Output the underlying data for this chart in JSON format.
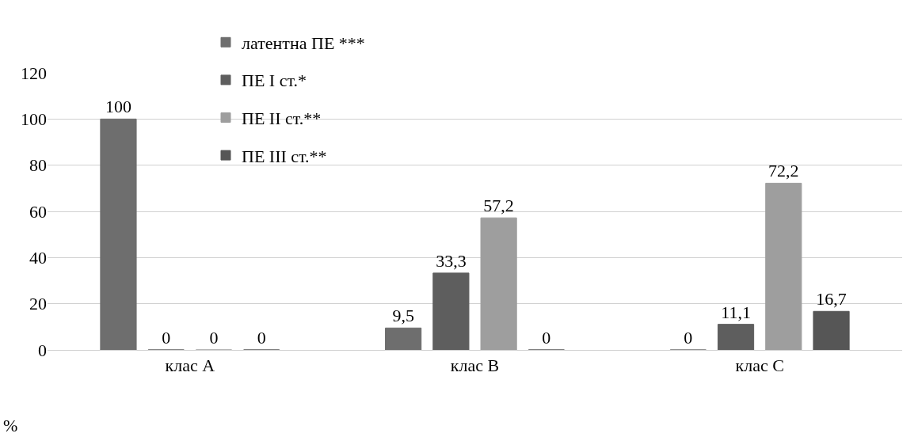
{
  "chart_data": {
    "type": "bar",
    "ylabel": "%",
    "categories": [
      "клас А",
      "клас В",
      "клас С"
    ],
    "series": [
      {
        "name": "латентна ПЕ ***",
        "color": "#6e6e6e",
        "values": [
          100,
          9.5,
          0
        ],
        "value_labels": [
          "100",
          "9,5",
          "0"
        ]
      },
      {
        "name": "ПЕ I ст.*",
        "color": "#5e5e5e",
        "values": [
          0,
          33.3,
          11.1
        ],
        "value_labels": [
          "0",
          "33,3",
          "11,1"
        ]
      },
      {
        "name": "ПЕ II ст.**",
        "color": "#9e9e9e",
        "values": [
          0,
          57.2,
          72.2
        ],
        "value_labels": [
          "0",
          "57,2",
          "72,2"
        ]
      },
      {
        "name": "ПЕ III ст.**",
        "color": "#565656",
        "values": [
          0,
          0,
          16.7
        ],
        "value_labels": [
          "0",
          "0",
          "16,7"
        ]
      }
    ],
    "ylim": [
      0,
      120
    ],
    "yticks": [
      0,
      20,
      40,
      60,
      80,
      100,
      120
    ],
    "grid": "y",
    "legend": "top"
  }
}
